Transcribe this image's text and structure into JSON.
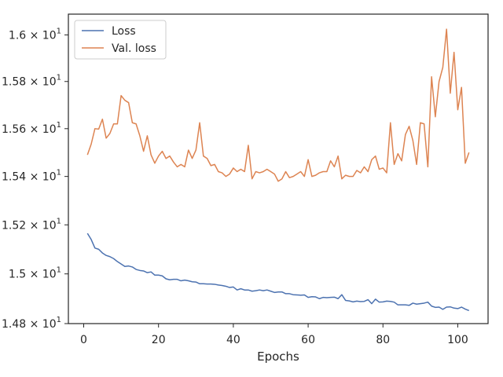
{
  "chart_data": {
    "type": "line",
    "title": "",
    "xlabel": "Epochs",
    "ylabel": "",
    "yscale": "log",
    "xlim": [
      -4.1,
      108.1
    ],
    "ylim": [
      14.8,
      16.09
    ],
    "grid": false,
    "legend_position": "top-left",
    "x_ticks": [
      0,
      20,
      40,
      60,
      80,
      100
    ],
    "x_tick_labels": [
      "0",
      "20",
      "40",
      "60",
      "80",
      "100"
    ],
    "y_ticks": [
      14.8,
      15.0,
      15.2,
      15.4,
      15.6,
      15.8,
      16.0
    ],
    "y_tick_labels": [
      {
        "base": "1.48 × 10",
        "exp": "1"
      },
      {
        "base": "1.5 × 10",
        "exp": "1"
      },
      {
        "base": "1.52 × 10",
        "exp": "1"
      },
      {
        "base": "1.54 × 10",
        "exp": "1"
      },
      {
        "base": "1.56 × 10",
        "exp": "1"
      },
      {
        "base": "1.58 × 10",
        "exp": "1"
      },
      {
        "base": "1.6 × 10",
        "exp": "1"
      }
    ],
    "x": [
      1,
      2,
      3,
      4,
      5,
      6,
      7,
      8,
      9,
      10,
      11,
      12,
      13,
      14,
      15,
      16,
      17,
      18,
      19,
      20,
      21,
      22,
      23,
      24,
      25,
      26,
      27,
      28,
      29,
      30,
      31,
      32,
      33,
      34,
      35,
      36,
      37,
      38,
      39,
      40,
      41,
      42,
      43,
      44,
      45,
      46,
      47,
      48,
      49,
      50,
      51,
      52,
      53,
      54,
      55,
      56,
      57,
      58,
      59,
      60,
      61,
      62,
      63,
      64,
      65,
      66,
      67,
      68,
      69,
      70,
      71,
      72,
      73,
      74,
      75,
      76,
      77,
      78,
      79,
      80,
      81,
      82,
      83,
      84,
      85,
      86,
      87,
      88,
      89,
      90,
      91,
      92,
      93,
      94,
      95,
      96,
      97,
      98,
      99,
      100,
      101,
      102,
      103
    ],
    "series": [
      {
        "name": "Loss",
        "color": "#4c72b0",
        "values": [
          15.165,
          15.14,
          15.105,
          15.1,
          15.085,
          15.075,
          15.07,
          15.062,
          15.05,
          15.04,
          15.03,
          15.032,
          15.028,
          15.018,
          15.014,
          15.012,
          15.005,
          15.008,
          14.995,
          14.995,
          14.992,
          14.98,
          14.976,
          14.978,
          14.978,
          14.972,
          14.975,
          14.972,
          14.968,
          14.967,
          14.96,
          14.96,
          14.959,
          14.959,
          14.958,
          14.955,
          14.953,
          14.95,
          14.945,
          14.947,
          14.935,
          14.94,
          14.935,
          14.935,
          14.93,
          14.932,
          14.935,
          14.932,
          14.935,
          14.93,
          14.925,
          14.927,
          14.927,
          14.92,
          14.92,
          14.916,
          14.915,
          14.914,
          14.915,
          14.905,
          14.908,
          14.907,
          14.9,
          14.905,
          14.904,
          14.905,
          14.906,
          14.9,
          14.916,
          14.893,
          14.891,
          14.887,
          14.89,
          14.888,
          14.889,
          14.896,
          14.88,
          14.898,
          14.886,
          14.887,
          14.89,
          14.889,
          14.886,
          14.875,
          14.875,
          14.875,
          14.873,
          14.882,
          14.878,
          14.88,
          14.882,
          14.886,
          14.87,
          14.865,
          14.866,
          14.857,
          14.866,
          14.867,
          14.862,
          14.86,
          14.866,
          14.858,
          14.852
        ]
      },
      {
        "name": "Val. loss",
        "color": "#dd8452",
        "values": [
          15.49,
          15.535,
          15.6,
          15.598,
          15.64,
          15.56,
          15.58,
          15.62,
          15.62,
          15.74,
          15.72,
          15.71,
          15.625,
          15.62,
          15.57,
          15.505,
          15.57,
          15.49,
          15.455,
          15.485,
          15.505,
          15.475,
          15.485,
          15.46,
          15.44,
          15.45,
          15.44,
          15.51,
          15.475,
          15.51,
          15.625,
          15.485,
          15.475,
          15.445,
          15.45,
          15.42,
          15.415,
          15.4,
          15.41,
          15.435,
          15.42,
          15.43,
          15.42,
          15.53,
          15.39,
          15.42,
          15.415,
          15.42,
          15.43,
          15.42,
          15.41,
          15.38,
          15.39,
          15.42,
          15.395,
          15.4,
          15.41,
          15.42,
          15.4,
          15.47,
          15.4,
          15.405,
          15.415,
          15.42,
          15.42,
          15.465,
          15.44,
          15.485,
          15.39,
          15.405,
          15.4,
          15.4,
          15.425,
          15.415,
          15.44,
          15.42,
          15.47,
          15.485,
          15.43,
          15.435,
          15.415,
          15.625,
          15.45,
          15.495,
          15.465,
          15.575,
          15.61,
          15.55,
          15.45,
          15.625,
          15.62,
          15.44,
          15.82,
          15.65,
          15.8,
          15.86,
          16.025,
          15.75,
          15.925,
          15.68,
          15.775,
          15.455,
          15.5
        ]
      }
    ]
  }
}
